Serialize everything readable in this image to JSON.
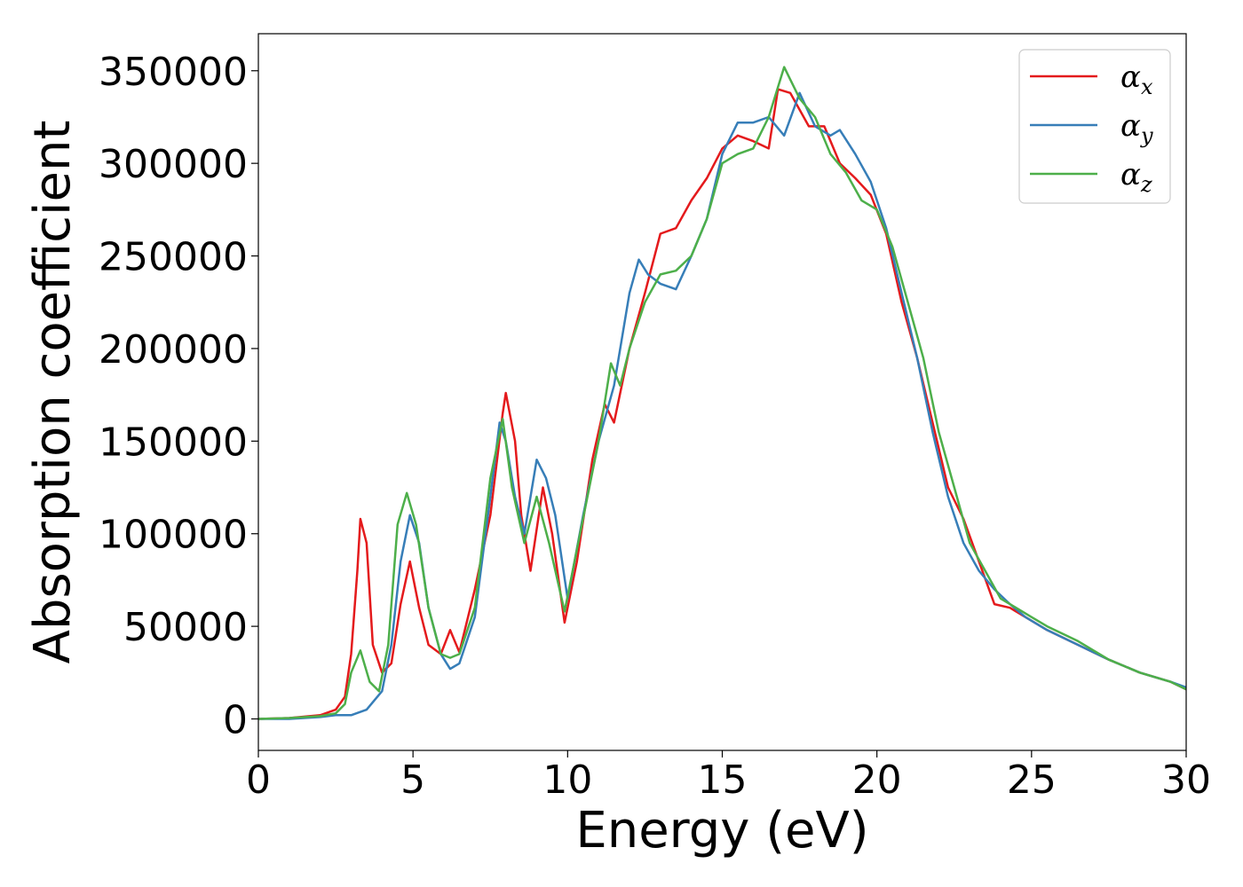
{
  "chart_data": {
    "type": "line",
    "xlabel": "Energy (eV)",
    "ylabel": "Absorption coefficient",
    "xlim": [
      0,
      30
    ],
    "ylim": [
      -17000,
      370000
    ],
    "xticks": [
      0,
      5,
      10,
      15,
      20,
      25,
      30
    ],
    "xtick_labels": [
      "0",
      "5",
      "10",
      "15",
      "20",
      "25",
      "30"
    ],
    "yticks": [
      0,
      50000,
      100000,
      150000,
      200000,
      250000,
      300000,
      350000
    ],
    "ytick_labels": [
      "0",
      "50000",
      "100000",
      "150000",
      "200000",
      "250000",
      "300000",
      "350000"
    ],
    "grid": false,
    "legend_position": "top-right",
    "series": [
      {
        "name": "α",
        "subscript": "x",
        "color": "#e41a1c",
        "x": [
          0,
          1,
          2,
          2.5,
          2.8,
          3.0,
          3.2,
          3.3,
          3.5,
          3.7,
          4.0,
          4.3,
          4.6,
          4.9,
          5.2,
          5.5,
          5.9,
          6.2,
          6.5,
          7.0,
          7.5,
          7.9,
          8.0,
          8.3,
          8.5,
          8.8,
          9.2,
          9.5,
          9.9,
          10.3,
          10.8,
          11.2,
          11.5,
          12.0,
          12.5,
          13.0,
          13.5,
          14.0,
          14.5,
          15.0,
          15.5,
          16.0,
          16.5,
          16.8,
          17.2,
          17.8,
          18.3,
          18.8,
          19.3,
          19.8,
          20.3,
          20.8,
          21.3,
          21.8,
          22.3,
          22.8,
          23.3,
          23.8,
          24.3,
          24.8,
          25.5,
          26.5,
          27.5,
          28.5,
          29.5,
          30
        ],
        "y": [
          0,
          500,
          2000,
          5000,
          12000,
          35000,
          80000,
          108000,
          95000,
          40000,
          25000,
          30000,
          62000,
          85000,
          60000,
          40000,
          35000,
          48000,
          36000,
          70000,
          110000,
          165000,
          176000,
          150000,
          110000,
          80000,
          125000,
          100000,
          52000,
          85000,
          140000,
          170000,
          160000,
          200000,
          230000,
          262000,
          265000,
          280000,
          292000,
          308000,
          315000,
          312000,
          308000,
          340000,
          338000,
          320000,
          320000,
          300000,
          292000,
          283000,
          262000,
          225000,
          195000,
          160000,
          125000,
          108000,
          85000,
          62000,
          60000,
          55000,
          48000,
          40000,
          32000,
          25000,
          20000,
          16000
        ]
      },
      {
        "name": "α",
        "subscript": "y",
        "color": "#377eb8",
        "x": [
          0,
          1,
          2,
          2.5,
          3.0,
          3.5,
          4.0,
          4.3,
          4.6,
          4.9,
          5.2,
          5.5,
          5.9,
          6.2,
          6.5,
          7.0,
          7.5,
          7.8,
          8.0,
          8.3,
          8.6,
          9.0,
          9.3,
          9.6,
          10.0,
          10.5,
          11.0,
          11.5,
          12.0,
          12.3,
          12.6,
          13.0,
          13.5,
          14.0,
          14.5,
          15.0,
          15.5,
          16.0,
          16.5,
          17.0,
          17.5,
          18.0,
          18.5,
          18.8,
          19.3,
          19.8,
          20.3,
          20.8,
          21.3,
          21.8,
          22.3,
          22.8,
          23.3,
          23.8,
          24.3,
          24.8,
          25.5,
          26.5,
          27.5,
          28.5,
          29.5,
          30
        ],
        "y": [
          0,
          0,
          1000,
          2000,
          2000,
          5000,
          15000,
          40000,
          85000,
          110000,
          95000,
          60000,
          35000,
          27000,
          30000,
          55000,
          120000,
          160000,
          150000,
          120000,
          100000,
          140000,
          130000,
          110000,
          65000,
          110000,
          150000,
          180000,
          230000,
          248000,
          240000,
          235000,
          232000,
          250000,
          270000,
          305000,
          322000,
          322000,
          325000,
          315000,
          338000,
          320000,
          315000,
          318000,
          305000,
          290000,
          265000,
          230000,
          195000,
          155000,
          120000,
          95000,
          80000,
          70000,
          62000,
          55000,
          48000,
          40000,
          32000,
          25000,
          20000,
          17000
        ]
      },
      {
        "name": "α",
        "subscript": "z",
        "color": "#4daf4a",
        "x": [
          0,
          1,
          2,
          2.5,
          2.8,
          3.0,
          3.3,
          3.6,
          3.9,
          4.2,
          4.5,
          4.8,
          5.1,
          5.5,
          5.9,
          6.2,
          6.5,
          7.0,
          7.5,
          7.9,
          8.2,
          8.6,
          9.0,
          9.4,
          9.9,
          10.4,
          11.0,
          11.4,
          11.7,
          12.0,
          12.5,
          13.0,
          13.5,
          14.0,
          14.5,
          15.0,
          15.5,
          16.0,
          16.5,
          17.0,
          17.5,
          18.0,
          18.5,
          19.0,
          19.5,
          20.0,
          20.5,
          21.0,
          21.5,
          22.0,
          22.5,
          23.0,
          23.5,
          24.0,
          24.5,
          25.0,
          25.5,
          26.5,
          27.5,
          28.5,
          29.5,
          30
        ],
        "y": [
          0,
          500,
          1500,
          3000,
          8000,
          25000,
          37000,
          20000,
          15000,
          40000,
          105000,
          122000,
          105000,
          60000,
          35000,
          33000,
          35000,
          60000,
          130000,
          162000,
          125000,
          95000,
          120000,
          95000,
          58000,
          100000,
          150000,
          192000,
          180000,
          200000,
          225000,
          240000,
          242000,
          250000,
          270000,
          300000,
          305000,
          308000,
          325000,
          352000,
          335000,
          325000,
          305000,
          295000,
          280000,
          275000,
          255000,
          225000,
          195000,
          155000,
          125000,
          95000,
          80000,
          65000,
          60000,
          55000,
          50000,
          42000,
          32000,
          25000,
          20000,
          16000
        ]
      }
    ]
  }
}
